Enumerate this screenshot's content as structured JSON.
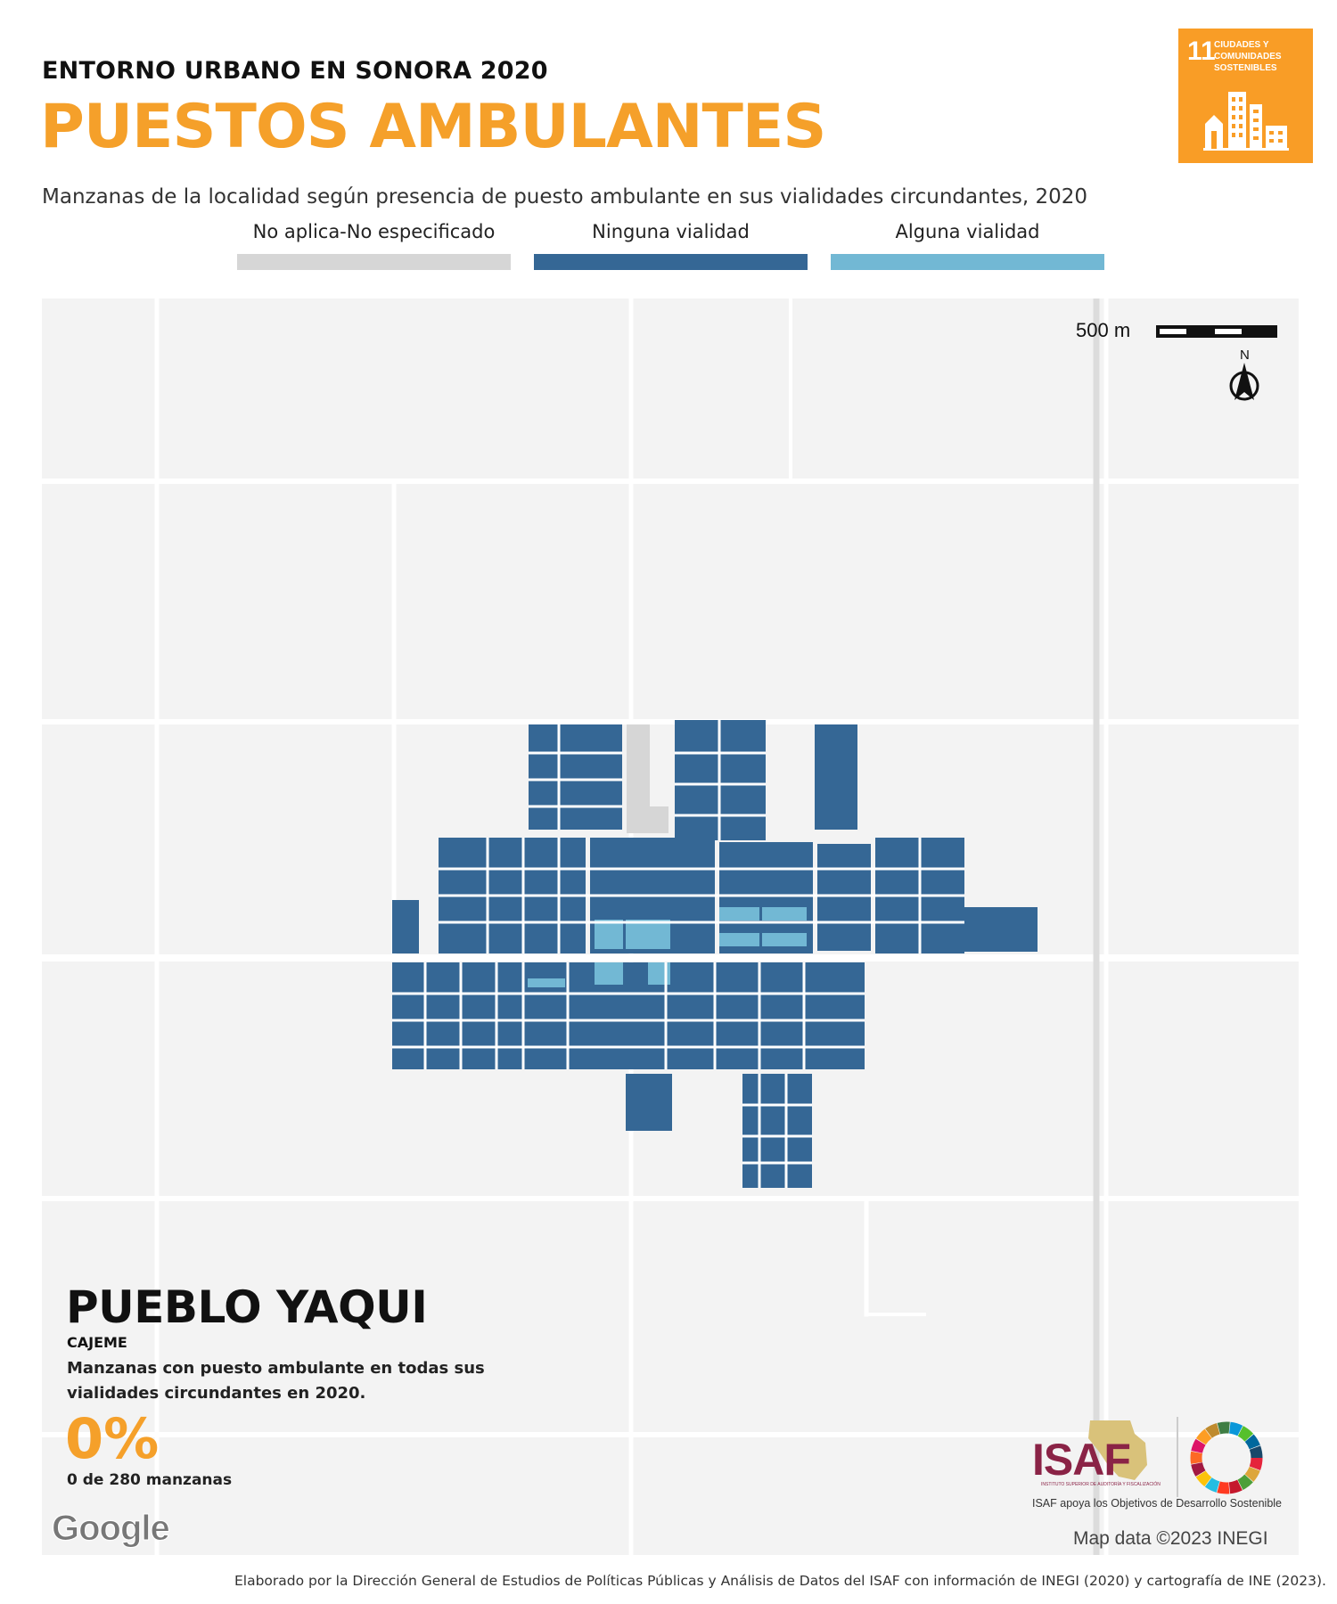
{
  "header": {
    "kicker": "ENTORNO URBANO EN SONORA 2020",
    "title": "PUESTOS AMBULANTES",
    "subtitle": "Manzanas de la localidad según presencia de puesto ambulante en sus vialidades circundantes, 2020"
  },
  "sdg_badge": {
    "number": "11",
    "label": "CIUDADES Y COMUNIDADES SOSTENIBLES",
    "icon": "city-buildings-icon",
    "color": "#f99d26"
  },
  "legend": [
    {
      "label": "No aplica-No especificado",
      "color": "#d6d6d6"
    },
    {
      "label": "Ninguna vialidad",
      "color": "#356795"
    },
    {
      "label": "Alguna vialidad",
      "color": "#72b8d4"
    }
  ],
  "map": {
    "scale_label": "500 m",
    "north_label": "N",
    "north_icon": "north-arrow-icon",
    "place_name": "PUEBLO YAQUI",
    "municipality": "CAJEME",
    "stat_description": "Manzanas con puesto ambulante en todas sus vialidades circundantes en 2020.",
    "stat_value": "0%",
    "stat_count": "0 de 280 manzanas",
    "provider_logo": "Google",
    "attribution": "Map data ©2023 INEGI",
    "background_color": "#f3f3f3"
  },
  "logos": {
    "isaf_name": "ISAF",
    "isaf_subtext": "INSTITUTO SUPERIOR DE AUDITORÍA Y FISCALIZACIÓN",
    "isaf_color": "#8a2346",
    "tagline": "ISAF apoya los Objetivos de Desarrollo Sostenible",
    "sdg_wheel_icon": "sdg-color-wheel-icon"
  },
  "footer": "Elaborado por la Dirección General de Estudios de Políticas Públicas y Análisis de Datos del ISAF con información de INEGI (2020) y cartografía de INE (2023)."
}
